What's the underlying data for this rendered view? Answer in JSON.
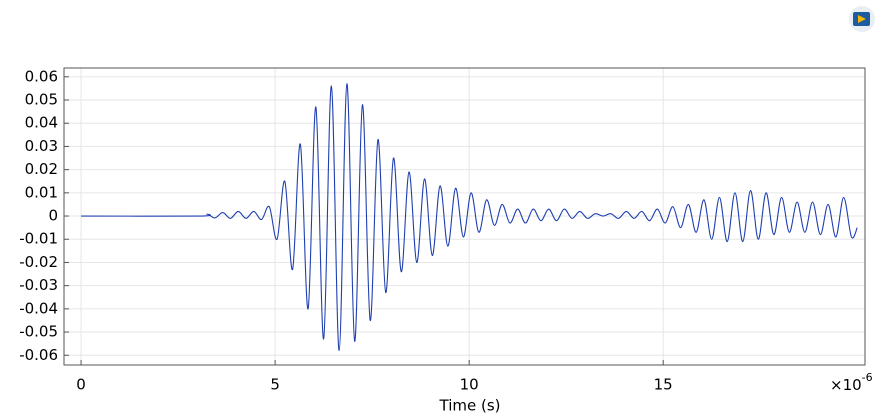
{
  "chart_data": {
    "type": "line",
    "xlabel": "Time (s)",
    "x_multiplier": "×10",
    "x_exponent": "-6",
    "xlim": [
      -4.4e-07,
      2.02e-05
    ],
    "xticks": [
      {
        "value": 0,
        "label": "0"
      },
      {
        "value": 5e-06,
        "label": "5"
      },
      {
        "value": 1e-05,
        "label": "10"
      },
      {
        "value": 1.5e-05,
        "label": "15"
      }
    ],
    "ylim": [
      -0.0642,
      0.0638
    ],
    "yticks": [
      0.06,
      0.05,
      0.04,
      0.03,
      0.02,
      0.01,
      0,
      -0.01,
      -0.02,
      -0.03,
      -0.04,
      -0.05,
      -0.06
    ],
    "grid": true,
    "series": [
      {
        "color": "#1f3fb0",
        "x": [
          0,
          3.05e-06,
          3.25e-06,
          3.45e-06,
          3.65e-06,
          3.85e-06,
          4.05e-06,
          4.25e-06,
          4.45e-06,
          4.65e-06,
          4.85e-06,
          5.05e-06,
          5.25e-06,
          5.45e-06,
          5.65e-06,
          5.85e-06,
          6.05e-06,
          6.25e-06,
          6.45e-06,
          6.65e-06,
          6.85e-06,
          7.05e-06,
          7.25e-06,
          7.45e-06,
          7.65e-06,
          7.85e-06,
          8.05e-06,
          8.25e-06,
          8.45e-06,
          8.65e-06,
          8.85e-06,
          9.05e-06,
          9.25e-06,
          9.45e-06,
          9.65e-06,
          9.85e-06,
          1.005e-05,
          1.025e-05,
          1.045e-05,
          1.065e-05,
          1.085e-05,
          1.105e-05,
          1.125e-05,
          1.145e-05,
          1.165e-05,
          1.185e-05,
          1.205e-05,
          1.225e-05,
          1.245e-05,
          1.265e-05,
          1.285e-05,
          1.305e-05,
          1.325e-05,
          1.345e-05,
          1.365e-05,
          1.385e-05,
          1.405e-05,
          1.425e-05,
          1.445e-05,
          1.465e-05,
          1.485e-05,
          1.505e-05,
          1.525e-05,
          1.545e-05,
          1.565e-05,
          1.585e-05,
          1.605e-05,
          1.625e-05,
          1.645e-05,
          1.665e-05,
          1.685e-05,
          1.705e-05,
          1.725e-05,
          1.745e-05,
          1.765e-05,
          1.785e-05,
          1.805e-05,
          1.825e-05,
          1.845e-05,
          1.865e-05,
          1.885e-05,
          1.905e-05,
          1.925e-05,
          1.945e-05,
          1.965e-05,
          1.985e-05,
          2e-05
        ],
        "values": [
          0,
          0,
          0.0008,
          -0.0008,
          0.0015,
          -0.001,
          0.002,
          -0.001,
          0.002,
          -0.0015,
          0.004,
          -0.01,
          0.015,
          -0.023,
          0.031,
          -0.04,
          0.047,
          -0.053,
          0.056,
          -0.058,
          0.057,
          -0.054,
          0.048,
          -0.045,
          0.033,
          -0.033,
          0.025,
          -0.024,
          0.019,
          -0.02,
          0.016,
          -0.017,
          0.013,
          -0.013,
          0.012,
          -0.009,
          0.01,
          -0.007,
          0.007,
          -0.004,
          0.005,
          -0.003,
          0.003,
          -0.003,
          0.003,
          -0.002,
          0.003,
          -0.002,
          0.003,
          -0.001,
          0.002,
          -0.001,
          0.001,
          0,
          0.001,
          -0.001,
          0.002,
          -0.001,
          0.002,
          -0.002,
          0.003,
          -0.003,
          0.004,
          -0.005,
          0.005,
          -0.007,
          0.007,
          -0.01,
          0.008,
          -0.011,
          0.01,
          -0.011,
          0.011,
          -0.01,
          0.01,
          -0.008,
          0.008,
          -0.007,
          0.006,
          -0.007,
          0.006,
          -0.008,
          0.005,
          -0.009,
          0.008,
          -0.009,
          -0.005
        ]
      }
    ]
  }
}
